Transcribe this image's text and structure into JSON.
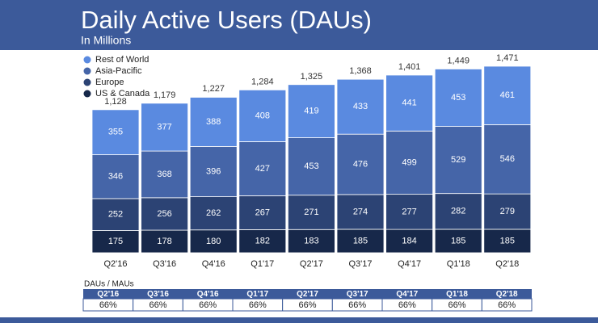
{
  "chart_data": {
    "type": "stacked_bar",
    "title": "Daily Active Users (DAUs)",
    "subtitle": "In Millions",
    "categories": [
      "Q2'16",
      "Q3'16",
      "Q4'16",
      "Q1'17",
      "Q2'17",
      "Q3'17",
      "Q4'17",
      "Q1'18",
      "Q2'18"
    ],
    "series": [
      {
        "name": "US & Canada",
        "color": "#17284a",
        "values": [
          175,
          178,
          180,
          182,
          183,
          185,
          184,
          185,
          185
        ]
      },
      {
        "name": "Europe",
        "color": "#2c4374",
        "values": [
          252,
          256,
          262,
          267,
          271,
          274,
          277,
          282,
          279
        ]
      },
      {
        "name": "Asia-Pacific",
        "color": "#4565a8",
        "values": [
          346,
          368,
          396,
          427,
          453,
          476,
          499,
          529,
          546
        ]
      },
      {
        "name": "Rest of World",
        "color": "#5a8ae0",
        "values": [
          355,
          377,
          388,
          408,
          419,
          433,
          441,
          453,
          461
        ]
      }
    ],
    "totals": [
      1128,
      1179,
      1227,
      1284,
      1325,
      1368,
      1401,
      1449,
      1471
    ],
    "total_labels": [
      "1,128",
      "1,179",
      "1,227",
      "1,284",
      "1,325",
      "1,368",
      "1,401",
      "1,449",
      "1,471"
    ]
  },
  "table": {
    "title": "DAUs / MAUs",
    "columns": [
      "Q2'16",
      "Q3'16",
      "Q4'16",
      "Q1'17",
      "Q2'17",
      "Q3'17",
      "Q4'17",
      "Q1'18",
      "Q2'18"
    ],
    "rows": [
      [
        "66%",
        "66%",
        "66%",
        "66%",
        "66%",
        "66%",
        "66%",
        "66%",
        "66%"
      ]
    ]
  }
}
